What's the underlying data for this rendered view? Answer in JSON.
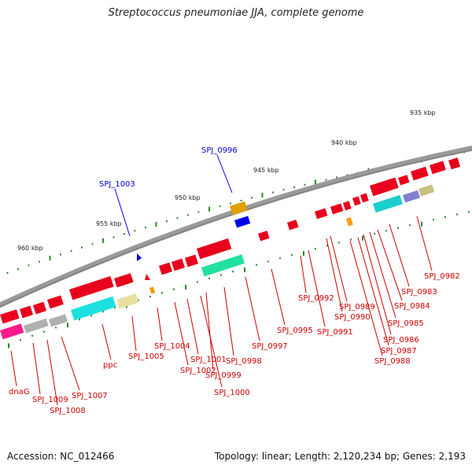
{
  "title": "Streptococcus pneumoniae JJA, complete genome",
  "footer": {
    "accession": "Accession: NC_012466",
    "topology": "Topology: linear; Length: 2,120,234 bp; Genes: 2,193"
  },
  "colors": {
    "forward_gene": "#e8001c",
    "highlight": "#0000ee",
    "backbone": "#808080",
    "tick": "#2a8a2a",
    "label": "#cc0000",
    "highlight_label": "#0000cc"
  },
  "scale_labels": [
    "935 kbp",
    "940 kbp",
    "945 kbp",
    "950 kbp",
    "955 kbp",
    "960 kbp"
  ],
  "highlighted_genes": [
    "SPJ_0996",
    "SPJ_1003"
  ],
  "gene_labels": [
    "SPJ_0982",
    "SPJ_0983",
    "SPJ_0984",
    "SPJ_0985",
    "SPJ_0986",
    "SPJ_0987",
    "SPJ_0988",
    "SPJ_0989",
    "SPJ_0990",
    "SPJ_0991",
    "SPJ_0992",
    "SPJ_0995",
    "SPJ_0997",
    "SPJ_0998",
    "SPJ_0999",
    "SPJ_1000",
    "SPJ_1001",
    "SPJ_1002",
    "SPJ_1004",
    "SPJ_1005",
    "ppc",
    "SPJ_1007",
    "SPJ_1008",
    "SPJ_1009",
    "dnaG"
  ]
}
